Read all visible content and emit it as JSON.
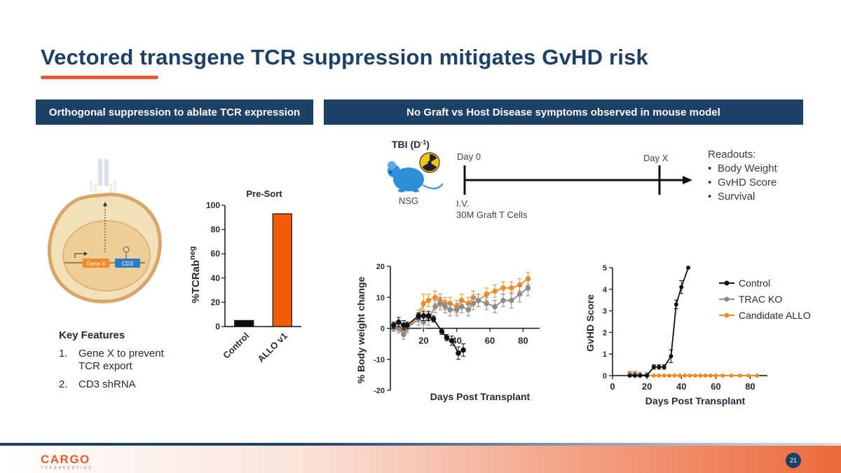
{
  "slide": {
    "title": "Vectored transgene TCR suppression mitigates GvHD risk",
    "page_number": "21",
    "brand": {
      "name": "CARGO",
      "tagline": "THERAPEUTICS"
    },
    "colors": {
      "navy": "#1d4067",
      "orange": "#ec5a2d",
      "orange_series": "#f28c28",
      "gray_series": "#8c8c8c",
      "black_series": "#111111"
    }
  },
  "left_panel": {
    "banner": "Orthogonal suppression to ablate TCR expression",
    "diagram": {
      "gene_x_label": "Gene X",
      "cd3_label": "CD3"
    },
    "key_features_title": "Key Features",
    "features": [
      {
        "num": "1.",
        "text": "Gene X to prevent TCR export"
      },
      {
        "num": "2.",
        "text": "CD3 shRNA"
      }
    ]
  },
  "right_panel": {
    "banner": "No Graft vs Host Disease symptoms observed in mouse model",
    "tbi_label": "TBI (D",
    "tbi_sup": "-1",
    "tbi_close": ")",
    "mouse_label": "NSG",
    "timeline": {
      "day0": "Day 0",
      "dayx": "Day X",
      "iv_line1": "I.V.",
      "iv_line2": "30M Graft T Cells"
    },
    "readouts_title": "Readouts:",
    "readouts": [
      "Body Weight",
      "GvHD Score",
      "Survival"
    ]
  },
  "chart_data": [
    {
      "type": "bar",
      "title": "Pre-Sort",
      "ylabel": "%TCRab",
      "ylabel_sup": "neg",
      "categories": [
        "Control",
        "ALLO v1"
      ],
      "values": [
        5,
        93
      ],
      "ylim": [
        0,
        100
      ],
      "yticks": [
        0,
        20,
        40,
        60,
        80,
        100
      ],
      "colors": [
        "#111111",
        "#f25c05"
      ]
    },
    {
      "type": "line",
      "ylabel": "% Body weight change",
      "xlabel": "Days Post  Transplant",
      "xlim": [
        0,
        90
      ],
      "ylim": [
        -20,
        20
      ],
      "xticks": [
        20,
        40,
        60,
        80
      ],
      "yticks": [
        -20,
        -10,
        0,
        10,
        20
      ],
      "series": [
        {
          "name": "Control",
          "color": "#111111",
          "x": [
            2,
            5,
            8,
            10,
            17,
            20,
            23,
            26,
            31,
            34,
            37,
            41,
            44
          ],
          "y": [
            1,
            2,
            1,
            1,
            4,
            4,
            4,
            3,
            -1,
            -3,
            -4,
            -8,
            -7
          ],
          "err": [
            1,
            1.5,
            1.5,
            1,
            1,
            1.5,
            1.5,
            1,
            1,
            1,
            1.5,
            2,
            2
          ]
        },
        {
          "name": "TRAC KO",
          "color": "#8c8c8c",
          "x": [
            2,
            5,
            8,
            10,
            17,
            20,
            23,
            27,
            30,
            33,
            36,
            40,
            43,
            47,
            50,
            53,
            58,
            63,
            68,
            73,
            78,
            83
          ],
          "y": [
            0,
            0,
            -2,
            0,
            3,
            2,
            3,
            7,
            8,
            7,
            6,
            6,
            7,
            6,
            8,
            9,
            8,
            7,
            9,
            9,
            11,
            13
          ],
          "err": [
            1,
            1.5,
            1.5,
            1.5,
            2,
            2,
            2,
            2,
            2,
            2,
            2,
            2,
            2,
            2,
            2,
            2,
            2,
            2,
            2,
            2.5,
            2.5,
            2.5
          ]
        },
        {
          "name": "Candidate ALLO",
          "color": "#f28c28",
          "x": [
            2,
            5,
            8,
            10,
            17,
            20,
            23,
            27,
            30,
            33,
            36,
            40,
            43,
            47,
            50,
            53,
            58,
            63,
            68,
            73,
            78,
            83
          ],
          "y": [
            0,
            0,
            -1,
            0,
            4,
            8,
            9,
            10,
            9,
            8,
            8,
            7,
            9,
            8,
            10,
            9,
            11,
            12,
            13,
            13,
            14,
            16
          ],
          "err": [
            1,
            1,
            1.5,
            1,
            2,
            3,
            2,
            2,
            2,
            2,
            2,
            2,
            2,
            2,
            2,
            2,
            2,
            2,
            2,
            2,
            2,
            2
          ]
        }
      ]
    },
    {
      "type": "line",
      "ylabel": "GvHD Score",
      "xlabel": "Days  Post  Transplant",
      "xlim": [
        0,
        90
      ],
      "ylim": [
        0,
        5
      ],
      "xticks": [
        0,
        20,
        40,
        60,
        80
      ],
      "yticks": [
        0,
        1,
        2,
        3,
        4,
        5
      ],
      "legend": [
        "Control",
        "TRAC KO",
        "Candidate ALLO"
      ],
      "legend_position": "right",
      "series": [
        {
          "name": "Control",
          "color": "#111111",
          "x": [
            10,
            13,
            16,
            20,
            24,
            27,
            30,
            34,
            37,
            40,
            44
          ],
          "y": [
            0,
            0,
            0,
            0,
            0.4,
            0.4,
            0.4,
            0.9,
            3.3,
            4.1,
            5
          ],
          "err": [
            0,
            0,
            0,
            0,
            0.1,
            0.1,
            0.1,
            0.3,
            0.2,
            0.3,
            0
          ]
        },
        {
          "name": "TRAC KO",
          "color": "#8c8c8c",
          "x": [
            10,
            13,
            16,
            20
          ],
          "y": [
            0.05,
            0.05,
            0.05,
            0.05
          ],
          "err": [
            0.1,
            0.1,
            0.1,
            0.1
          ]
        },
        {
          "name": "Candidate ALLO",
          "color": "#f28c28",
          "x": [
            10,
            13,
            20,
            24,
            27,
            30,
            33,
            36,
            39,
            42,
            45,
            48,
            51,
            54,
            57,
            60,
            64,
            69,
            74,
            79,
            84
          ],
          "y": [
            0.1,
            0.1,
            0,
            0,
            0,
            0,
            0,
            0,
            0,
            0,
            0,
            0,
            0,
            0,
            0,
            0,
            0,
            0,
            0,
            0,
            0
          ],
          "err": [
            0.1,
            0.1,
            0,
            0,
            0,
            0,
            0,
            0,
            0,
            0,
            0,
            0,
            0,
            0,
            0,
            0,
            0,
            0,
            0,
            0,
            0
          ]
        }
      ]
    }
  ]
}
